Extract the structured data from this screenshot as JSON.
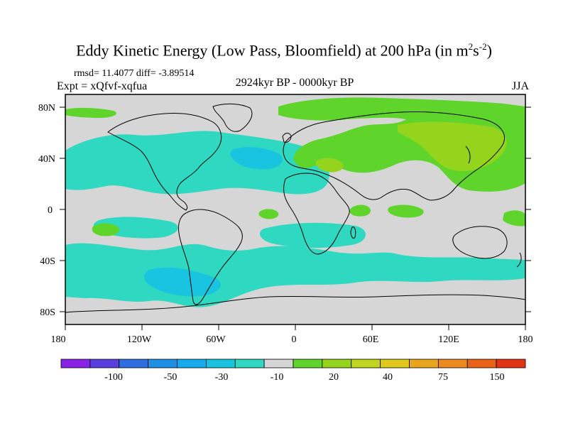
{
  "title_main": "Eddy Kinetic Energy (Low Pass, Bloomfield) at 200 hPa (in m",
  "title_sup1": "2",
  "title_mid": "s",
  "title_sup2": "-2",
  "title_end": ")",
  "stats": "rmsd= 11.4077 diff= -3.89514",
  "expt": "Expt = xQfvf-xqfua",
  "period": "2924kyr BP - 0000kyr BP",
  "season": "JJA",
  "lat_ticks": [
    "80N",
    "40N",
    "0",
    "40S",
    "80S"
  ],
  "lon_ticks": [
    "180",
    "120W",
    "60W",
    "0",
    "60E",
    "120E",
    "180"
  ],
  "colorbar": {
    "colors": [
      "#8a22e8",
      "#5a3ee0",
      "#2f6de0",
      "#1f8fe6",
      "#15acec",
      "#19c4e0",
      "#2fd8c0",
      "#d6d6d6",
      "#5fd42a",
      "#94d41c",
      "#c2d620",
      "#e0c91c",
      "#e8a61e",
      "#ec8a20",
      "#ea6218",
      "#e03414"
    ],
    "labels": [
      "-100",
      "-50",
      "-30",
      "-10",
      "20",
      "40",
      "75",
      "150"
    ]
  },
  "map_colors": {
    "land_bg": "#d6d6d6",
    "neg": "#2fd8c0",
    "neg_strong": "#19c4e0",
    "pos": "#5fd42a",
    "pos_strong": "#94d41c"
  }
}
